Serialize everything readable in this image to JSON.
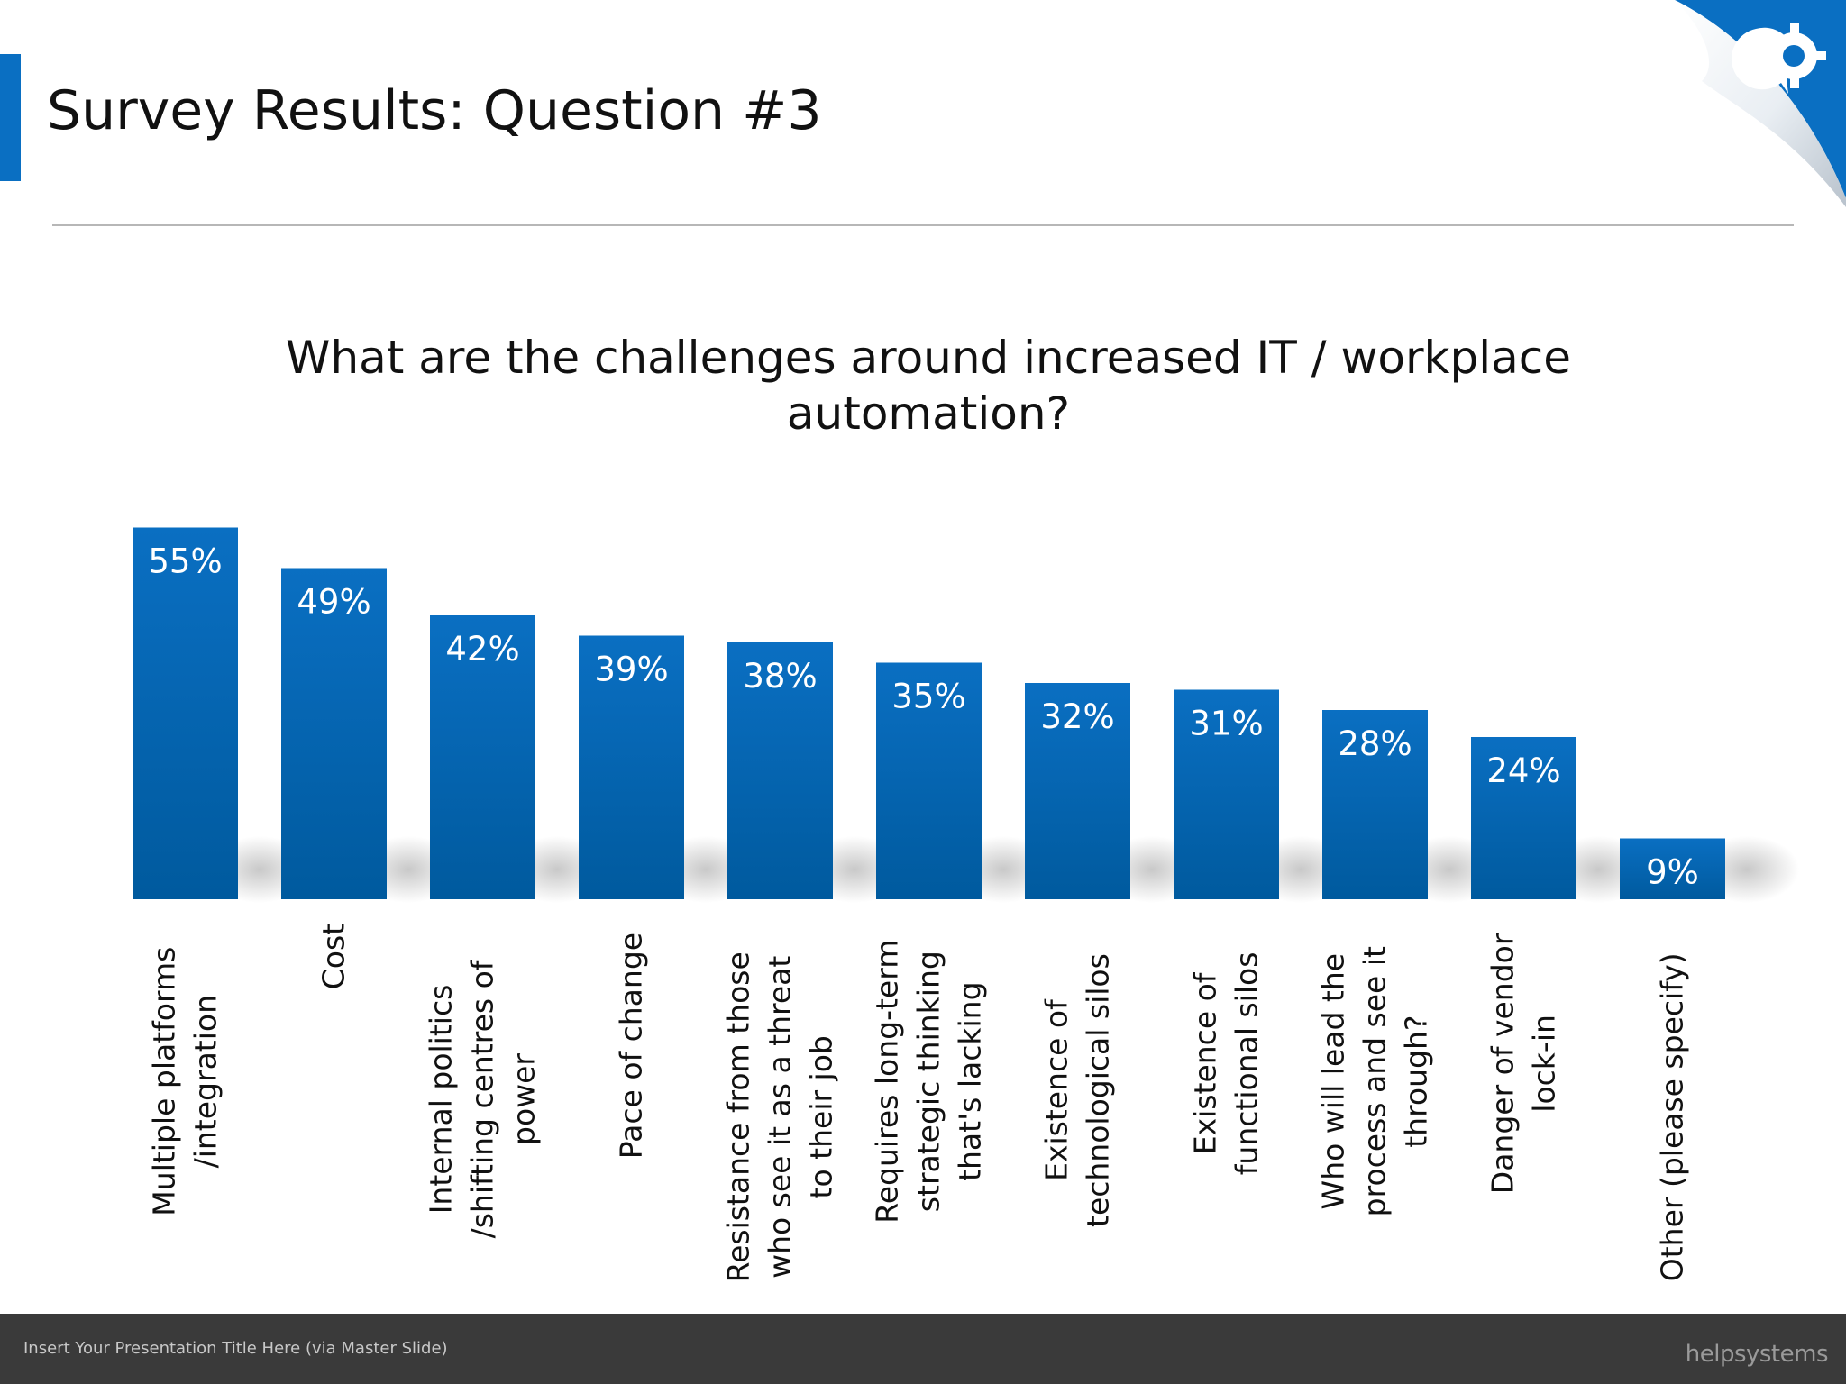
{
  "slide": {
    "title": "Survey Results: Question #3",
    "footer_text": "Insert Your Presentation Title Here (via Master Slide)",
    "footer_logo": "helpsystems",
    "accent_color": "#0a6fc2",
    "footer_color": "#3a3a3a",
    "corner_icon": "gear-speech-bubble-icon"
  },
  "chart_data": {
    "type": "bar",
    "title": "What are the challenges around increased IT / workplace automation?",
    "categories": [
      [
        "Multiple platforms",
        "/integration"
      ],
      [
        "Cost"
      ],
      [
        "Internal politics",
        "/shifting centres of",
        "power"
      ],
      [
        "Pace of change"
      ],
      [
        "Resistance from those",
        "who see it as a threat",
        "to their job"
      ],
      [
        "Requires long-term",
        "strategic thinking",
        "that's lacking"
      ],
      [
        "Existence of",
        "technological silos"
      ],
      [
        "Existence of",
        "functional silos"
      ],
      [
        "Who will lead the",
        "process and see it",
        "through?"
      ],
      [
        "Danger of vendor",
        "lock-in"
      ],
      [
        "Other (please specify)"
      ]
    ],
    "values": [
      55,
      49,
      42,
      39,
      38,
      35,
      32,
      31,
      28,
      24,
      9
    ],
    "data_labels": [
      "55%",
      "49%",
      "42%",
      "39%",
      "38%",
      "35%",
      "32%",
      "31%",
      "28%",
      "24%",
      "9%"
    ],
    "unit": "%",
    "ylim": [
      0,
      55
    ],
    "grid": false,
    "legend": "none",
    "bar_color": "#0a6fc2",
    "bar_color_dark": "#005a9e"
  }
}
